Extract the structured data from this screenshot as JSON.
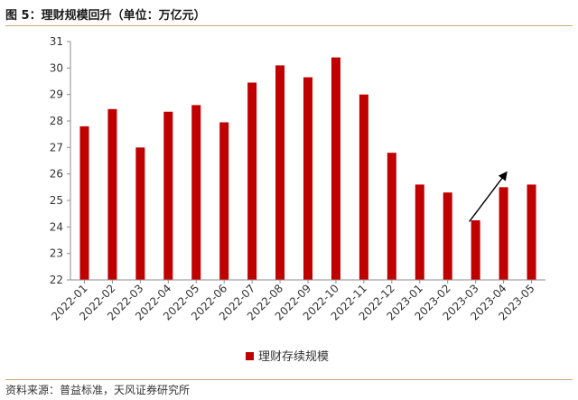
{
  "header": {
    "title": "图 5：理财规模回升（单位：万亿元）"
  },
  "footer": {
    "source": "资料来源：普益标准，天风证券研究所"
  },
  "colors": {
    "bar": "#c00000",
    "axis": "#8c8c8c",
    "arrow": "#000000"
  },
  "chart_data": {
    "type": "bar",
    "categories": [
      "2022-01",
      "2022-02",
      "2022-03",
      "2022-04",
      "2022-05",
      "2022-06",
      "2022-07",
      "2022-08",
      "2022-09",
      "2022-10",
      "2022-11",
      "2022-12",
      "2023-01",
      "2023-02",
      "2023-03",
      "2023-04",
      "2023-05"
    ],
    "series": [
      {
        "name": "理财存续规模",
        "values": [
          27.8,
          28.45,
          27.0,
          28.35,
          28.6,
          27.95,
          29.45,
          30.1,
          29.65,
          30.4,
          29.0,
          26.8,
          25.6,
          25.3,
          24.25,
          25.5,
          25.6
        ]
      }
    ],
    "ylim": [
      22,
      31
    ],
    "yticks": [
      22,
      23,
      24,
      25,
      26,
      27,
      28,
      29,
      30,
      31
    ],
    "grid": false,
    "legend": "bottom-center",
    "annotation": {
      "type": "arrow",
      "from_category": "2023-03",
      "from_value": 24.2,
      "to_category": "2023-04",
      "to_value": 26.05
    }
  }
}
